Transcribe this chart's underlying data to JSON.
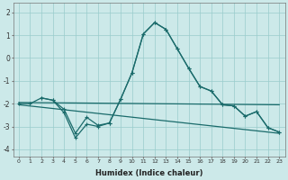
{
  "xlabel": "Humidex (Indice chaleur)",
  "xlim": [
    -0.5,
    23.5
  ],
  "ylim": [
    -4.3,
    2.4
  ],
  "yticks": [
    -4,
    -3,
    -2,
    -1,
    0,
    1,
    2
  ],
  "xticks": [
    0,
    1,
    2,
    3,
    4,
    5,
    6,
    7,
    8,
    9,
    10,
    11,
    12,
    13,
    14,
    15,
    16,
    17,
    18,
    19,
    20,
    21,
    22,
    23
  ],
  "bg_color": "#cce9e9",
  "grid_color": "#99cccc",
  "line_color": "#1a6b6b",
  "line1_x": [
    0,
    1,
    2,
    3,
    4,
    5,
    6,
    7,
    8,
    9,
    10,
    11,
    12,
    13,
    14,
    15,
    16,
    17,
    18,
    19,
    20,
    21,
    22,
    23
  ],
  "line1_y": [
    -2.0,
    -2.0,
    -1.75,
    -1.85,
    -2.25,
    -3.3,
    -2.6,
    -2.95,
    -2.85,
    -1.8,
    -0.65,
    1.05,
    1.55,
    1.25,
    0.4,
    -0.45,
    -1.25,
    -1.45,
    -2.05,
    -2.1,
    -2.55,
    -2.35,
    -3.05,
    -3.25
  ],
  "line2_x": [
    2,
    3,
    4,
    5,
    6,
    7,
    8,
    9,
    10,
    11,
    12,
    13,
    14,
    15,
    16,
    17,
    18,
    19,
    20,
    21,
    22,
    23
  ],
  "line2_y": [
    -1.75,
    -1.85,
    -2.4,
    -3.5,
    -2.9,
    -3.0,
    -2.85,
    -1.8,
    -0.65,
    1.05,
    1.55,
    1.25,
    0.4,
    -0.45,
    -1.25,
    -1.45,
    -2.05,
    -2.1,
    -2.55,
    -2.35,
    -3.05,
    -3.25
  ],
  "flat_line_x": [
    0,
    23
  ],
  "flat_line_y": [
    -1.95,
    -2.05
  ],
  "diag_line_x": [
    0,
    23
  ],
  "diag_line_y": [
    -2.05,
    -3.3
  ]
}
